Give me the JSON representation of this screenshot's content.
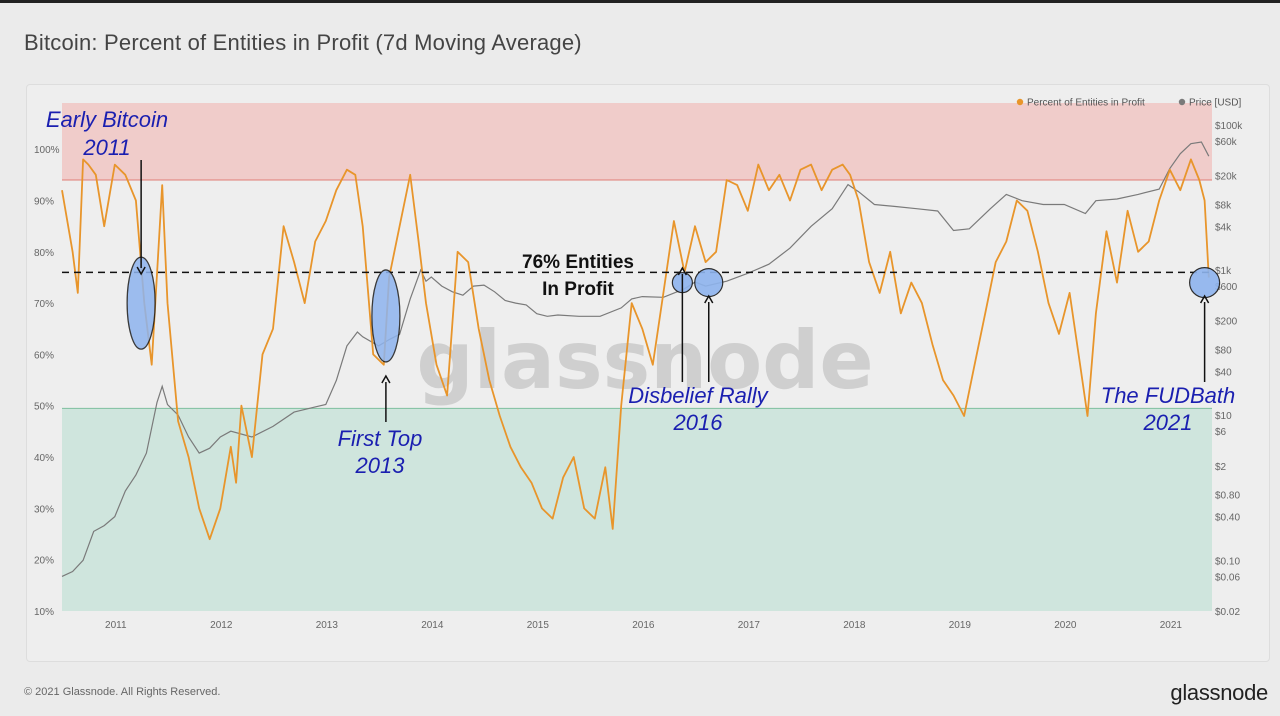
{
  "title": "Bitcoin: Percent of Entities in Profit (7d Moving Average)",
  "footer": "© 2021 Glassnode. All Rights Reserved.",
  "logo": "glassnode",
  "watermark": "glassnode",
  "colors": {
    "profit_line": "#e8952b",
    "price_line": "#7a7a7a",
    "upper_band": "#f0c6c3",
    "lower_band": "#c9e3d9",
    "circle_fill": "#8eb4ee",
    "annotation": "#1a1fb0"
  },
  "chart_data": {
    "type": "line",
    "title": "Bitcoin: Percent of Entities in Profit (7d Moving Average)",
    "x_range": [
      2010.5,
      2021.4
    ],
    "x_ticks": [
      "2011",
      "2012",
      "2013",
      "2014",
      "2015",
      "2016",
      "2017",
      "2018",
      "2019",
      "2020",
      "2021"
    ],
    "left_axis": {
      "range": [
        10,
        109
      ],
      "ticks": [
        "100%",
        "90%",
        "80%",
        "70%",
        "60%",
        "50%",
        "40%",
        "30%",
        "20%",
        "10%"
      ]
    },
    "right_axis": {
      "scale": "log",
      "range": [
        0.02,
        200000
      ],
      "ticks": [
        "$100k",
        "$60k",
        "$20k",
        "$8k",
        "$4k",
        "$1k",
        "$600",
        "$200",
        "$80",
        "$40",
        "$10",
        "$6",
        "$2",
        "$0.80",
        "$0.40",
        "$0.10",
        "$0.06",
        "$0.02"
      ]
    },
    "bands": [
      {
        "name": "upper",
        "from": 94,
        "to": 109
      },
      {
        "name": "lower",
        "from": 10,
        "to": 49.5
      }
    ],
    "reference_line": {
      "value": 76,
      "label_line1": "76% Entities",
      "label_line2": "In Profit"
    },
    "legend": [
      "Percent of Entities in Profit",
      "Price [USD]"
    ],
    "series": [
      {
        "name": "Percent of Entities in Profit",
        "x": [
          2010.5,
          2010.6,
          2010.65,
          2010.7,
          2010.75,
          2010.82,
          2010.9,
          2011.0,
          2011.1,
          2011.2,
          2011.28,
          2011.35,
          2011.45,
          2011.5,
          2011.6,
          2011.7,
          2011.8,
          2011.9,
          2012.0,
          2012.1,
          2012.15,
          2012.2,
          2012.3,
          2012.4,
          2012.5,
          2012.6,
          2012.7,
          2012.8,
          2012.9,
          2013.0,
          2013.1,
          2013.2,
          2013.28,
          2013.35,
          2013.45,
          2013.55,
          2013.6,
          2013.7,
          2013.8,
          2013.88,
          2013.95,
          2014.05,
          2014.15,
          2014.25,
          2014.35,
          2014.45,
          2014.55,
          2014.65,
          2014.75,
          2014.85,
          2014.95,
          2015.05,
          2015.15,
          2015.25,
          2015.35,
          2015.45,
          2015.55,
          2015.65,
          2015.72,
          2015.8,
          2015.9,
          2016.0,
          2016.1,
          2016.2,
          2016.3,
          2016.4,
          2016.5,
          2016.6,
          2016.7,
          2016.8,
          2016.9,
          2017.0,
          2017.1,
          2017.2,
          2017.3,
          2017.4,
          2017.5,
          2017.6,
          2017.7,
          2017.8,
          2017.9,
          2017.97,
          2018.05,
          2018.15,
          2018.25,
          2018.35,
          2018.45,
          2018.55,
          2018.65,
          2018.75,
          2018.85,
          2018.95,
          2019.05,
          2019.15,
          2019.25,
          2019.35,
          2019.45,
          2019.55,
          2019.65,
          2019.75,
          2019.85,
          2019.95,
          2020.05,
          2020.15,
          2020.22,
          2020.3,
          2020.4,
          2020.5,
          2020.6,
          2020.7,
          2020.8,
          2020.9,
          2021.0,
          2021.1,
          2021.2,
          2021.28,
          2021.33,
          2021.37
        ],
        "values": [
          92,
          80,
          72,
          98,
          97,
          95,
          85,
          97,
          95,
          90,
          70,
          58,
          93,
          70,
          47,
          40,
          30,
          24,
          30,
          42,
          35,
          50,
          40,
          60,
          65,
          85,
          78,
          70,
          82,
          86,
          92,
          96,
          95,
          85,
          60,
          58,
          75,
          85,
          95,
          82,
          70,
          58,
          52,
          80,
          78,
          65,
          55,
          48,
          42,
          38,
          35,
          30,
          28,
          36,
          40,
          30,
          28,
          38,
          26,
          50,
          70,
          65,
          58,
          72,
          86,
          76,
          85,
          78,
          80,
          94,
          93,
          88,
          97,
          92,
          95,
          90,
          96,
          97,
          92,
          96,
          97,
          95,
          90,
          78,
          72,
          80,
          68,
          74,
          70,
          62,
          55,
          52,
          48,
          58,
          68,
          78,
          82,
          90,
          88,
          80,
          70,
          64,
          72,
          58,
          48,
          68,
          84,
          74,
          88,
          80,
          82,
          90,
          96,
          92,
          98,
          94,
          90,
          75
        ]
      },
      {
        "name": "Price [USD]",
        "x": [
          2010.5,
          2010.6,
          2010.7,
          2010.8,
          2010.9,
          2011.0,
          2011.1,
          2011.2,
          2011.3,
          2011.4,
          2011.45,
          2011.5,
          2011.6,
          2011.7,
          2011.8,
          2011.9,
          2012.0,
          2012.1,
          2012.3,
          2012.5,
          2012.7,
          2012.9,
          2013.0,
          2013.1,
          2013.2,
          2013.3,
          2013.35,
          2013.5,
          2013.6,
          2013.7,
          2013.8,
          2013.9,
          2013.95,
          2014.0,
          2014.1,
          2014.2,
          2014.3,
          2014.4,
          2014.5,
          2014.6,
          2014.7,
          2014.8,
          2014.9,
          2015.0,
          2015.1,
          2015.2,
          2015.4,
          2015.6,
          2015.8,
          2015.9,
          2016.0,
          2016.2,
          2016.4,
          2016.5,
          2016.6,
          2016.8,
          2017.0,
          2017.2,
          2017.4,
          2017.6,
          2017.8,
          2017.95,
          2018.05,
          2018.2,
          2018.4,
          2018.6,
          2018.8,
          2018.95,
          2019.1,
          2019.3,
          2019.45,
          2019.6,
          2019.8,
          2020.0,
          2020.2,
          2020.3,
          2020.5,
          2020.7,
          2020.9,
          2021.0,
          2021.1,
          2021.2,
          2021.3,
          2021.37
        ],
        "values": [
          0.06,
          0.07,
          0.1,
          0.25,
          0.3,
          0.4,
          0.9,
          1.5,
          3,
          15,
          25,
          14,
          10,
          5,
          3,
          3.5,
          5,
          6,
          5,
          7,
          11,
          13,
          14,
          30,
          90,
          140,
          120,
          90,
          110,
          130,
          400,
          1000,
          700,
          800,
          600,
          500,
          450,
          600,
          620,
          500,
          380,
          350,
          330,
          250,
          230,
          240,
          230,
          230,
          300,
          400,
          430,
          420,
          550,
          680,
          600,
          700,
          900,
          1200,
          2000,
          4000,
          7000,
          15000,
          12000,
          8000,
          7500,
          7000,
          6500,
          3500,
          3700,
          7000,
          11000,
          9000,
          8000,
          8000,
          6000,
          9000,
          9500,
          11000,
          13000,
          25000,
          40000,
          55000,
          58000,
          37000
        ]
      }
    ],
    "highlights": [
      {
        "x": 2011.25,
        "y": 70,
        "label_line1": "Early Bitcoin",
        "label_line2": "2011",
        "shape": "ellipse"
      },
      {
        "x": 2013.57,
        "y": 67.5,
        "label_line1": "First Top",
        "label_line2": "2013",
        "shape": "ellipse"
      },
      {
        "x": 2016.38,
        "y": 74,
        "label_line1": "Disbelief Rally",
        "label_line2": "2016",
        "shape": "circle"
      },
      {
        "x": 2016.63,
        "y": 74,
        "label_line1": "",
        "label_line2": "",
        "shape": "circle"
      },
      {
        "x": 2021.33,
        "y": 74,
        "label_line1": "The FUDBath",
        "label_line2": "2021",
        "shape": "circle"
      }
    ]
  }
}
